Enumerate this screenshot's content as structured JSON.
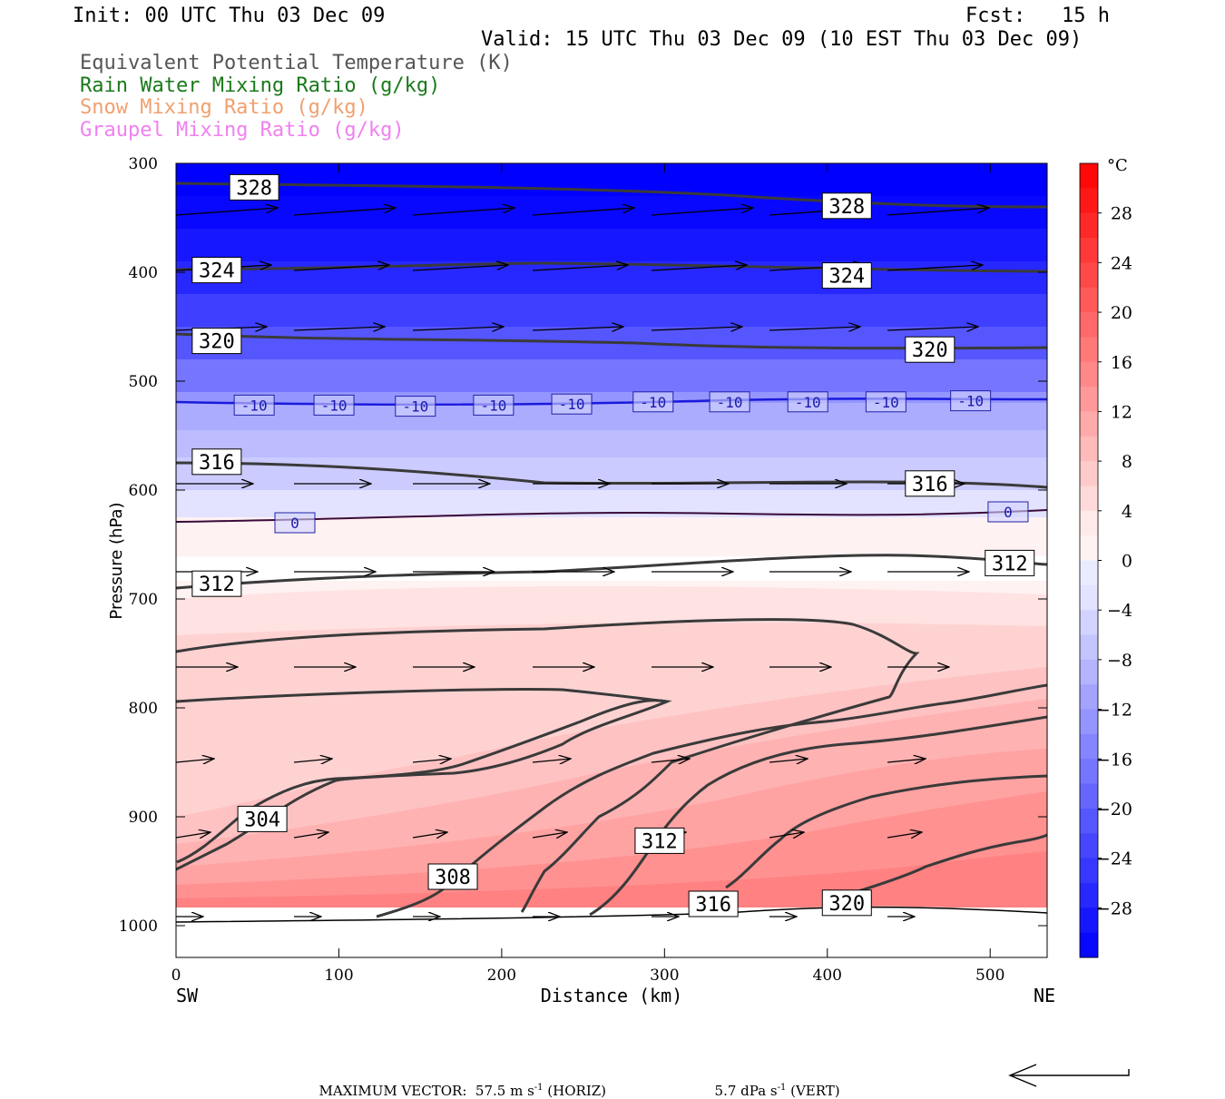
{
  "header": {
    "init": "Init: 00 UTC Thu 03 Dec 09",
    "fcst": "Fcst:   15 h",
    "valid": "Valid: 15 UTC Thu 03 Dec 09 (10 EST Thu 03 Dec 09)"
  },
  "legend": [
    {
      "label": "Equivalent Potential Temperature (K)",
      "color": "#555555"
    },
    {
      "label": "Rain Water Mixing Ratio (g/kg)",
      "color": "#1a7a1a"
    },
    {
      "label": "Snow Mixing Ratio (g/kg)",
      "color": "#f0a070"
    },
    {
      "label": "Graupel Mixing Ratio (g/kg)",
      "color": "#f080f0"
    }
  ],
  "footer": {
    "max_vector": "MAXIMUM VECTOR:  57.5 m s",
    "horiz": " (HORIZ)",
    "vert_value": "5.7 dPa s",
    "vert": " (VERT)",
    "unit_exp": "-1"
  },
  "chart_data": {
    "type": "cross-section",
    "xlabel": "Distance (km)",
    "ylabel": "Pressure (hPa)",
    "x_ticks": [
      0,
      100,
      200,
      300,
      400,
      500
    ],
    "x_end_labels": {
      "left": "SW",
      "right": "NE"
    },
    "y_ticks": [
      300,
      400,
      500,
      600,
      700,
      800,
      900,
      1000
    ],
    "xlim": [
      0,
      535
    ],
    "ylim": [
      300,
      1030
    ],
    "colorbar": {
      "unit": "°C",
      "tick_labels": [
        "28",
        "24",
        "20",
        "16",
        "12",
        "8",
        "4",
        "0",
        "−4",
        "−8",
        "−12",
        "−16",
        "−20",
        "−24",
        "−28"
      ],
      "tick_values": [
        28,
        24,
        20,
        16,
        12,
        8,
        4,
        0,
        -4,
        -8,
        -12,
        -16,
        -20,
        -24,
        -28
      ],
      "range": [
        -32,
        32
      ],
      "levels": 32,
      "cold_color": "#0000ff",
      "warm_color": "#ff0000"
    },
    "temperature_bands": [
      {
        "p": 300,
        "t": -32
      },
      {
        "p": 330,
        "t": -31
      },
      {
        "p": 360,
        "t": -29
      },
      {
        "p": 390,
        "t": -27
      },
      {
        "p": 420,
        "t": -24
      },
      {
        "p": 450,
        "t": -21
      },
      {
        "p": 480,
        "t": -17
      },
      {
        "p": 510,
        "t": -13
      },
      {
        "p": 520,
        "t": -10
      },
      {
        "p": 545,
        "t": -8
      },
      {
        "p": 570,
        "t": -6
      },
      {
        "p": 600,
        "t": -3
      },
      {
        "p": 625,
        "t": 0
      }
    ],
    "theta_e_labels": [
      {
        "text": "328",
        "x": 48,
        "p": 322
      },
      {
        "text": "328",
        "x": 412,
        "p": 339
      },
      {
        "text": "324",
        "x": 25,
        "p": 398
      },
      {
        "text": "324",
        "x": 412,
        "p": 403
      },
      {
        "text": "320",
        "x": 25,
        "p": 463
      },
      {
        "text": "320",
        "x": 463,
        "p": 471
      },
      {
        "text": "316",
        "x": 25,
        "p": 574
      },
      {
        "text": "316",
        "x": 463,
        "p": 594
      },
      {
        "text": "312",
        "x": 25,
        "p": 686
      },
      {
        "text": "312",
        "x": 512,
        "p": 667
      },
      {
        "text": "304",
        "x": 53,
        "p": 902
      },
      {
        "text": "308",
        "x": 170,
        "p": 955
      },
      {
        "text": "312",
        "x": 297,
        "p": 922
      },
      {
        "text": "316",
        "x": 330,
        "p": 980
      },
      {
        "text": "320",
        "x": 412,
        "p": 979
      }
    ],
    "isotherm_labels": [
      {
        "text": "-10",
        "x": 48,
        "p": 522
      },
      {
        "text": "-10",
        "x": 97,
        "p": 522
      },
      {
        "text": "-10",
        "x": 147,
        "p": 523
      },
      {
        "text": "-10",
        "x": 195,
        "p": 522
      },
      {
        "text": "-10",
        "x": 243,
        "p": 521
      },
      {
        "text": "-10",
        "x": 293,
        "p": 519
      },
      {
        "text": "-10",
        "x": 340,
        "p": 519
      },
      {
        "text": "-10",
        "x": 388,
        "p": 519
      },
      {
        "text": "-10",
        "x": 436,
        "p": 519
      },
      {
        "text": "-10",
        "x": 488,
        "p": 518
      },
      {
        "text": "0",
        "x": 73,
        "p": 630
      },
      {
        "text": "0",
        "x": 511,
        "p": 620
      }
    ]
  }
}
